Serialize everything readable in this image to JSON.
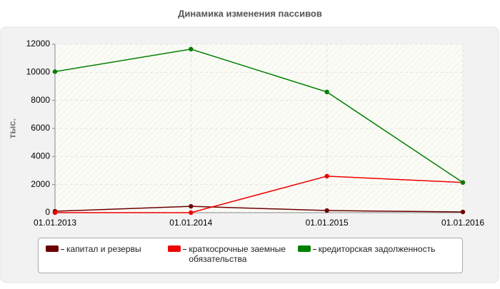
{
  "chart_data": {
    "type": "line",
    "title": "Динамика изменения пассивов",
    "y_label": "тыс.",
    "categories": [
      "01.01.2013",
      "01.01.2014",
      "01.01.2015",
      "01.01.2016"
    ],
    "series": [
      {
        "name": "капитал и резервы",
        "color": "#6b0000",
        "values": [
          100,
          450,
          150,
          50
        ]
      },
      {
        "name": "краткосрочные заемные обязательства",
        "color": "#ee0000",
        "values": [
          0,
          0,
          2600,
          2150
        ]
      },
      {
        "name": "кредиторская задолженность",
        "color": "#008000",
        "values": [
          10050,
          11650,
          8600,
          2150
        ]
      }
    ],
    "ylim": [
      0,
      12000
    ],
    "yticks": [
      0,
      2000,
      4000,
      6000,
      8000,
      10000,
      12000
    ],
    "grid": true
  }
}
